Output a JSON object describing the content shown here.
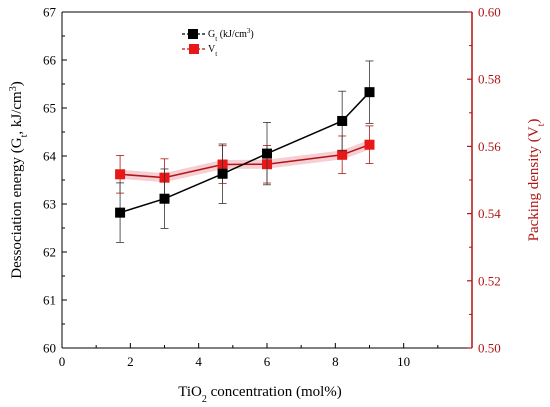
{
  "chart_data": {
    "type": "line",
    "x_axis": {
      "label_main": "TiO",
      "label_sub": "2",
      "label_rest": " concentration (mol%)",
      "range": [
        0,
        12
      ],
      "ticks": [
        0,
        2,
        4,
        6,
        8,
        10
      ]
    },
    "y_left": {
      "label_main": "Dessociation energy (G",
      "label_sub": "t",
      "label_mid": ", kJ/cm",
      "label_sup": "3",
      "label_end": ")",
      "range": [
        60,
        67
      ],
      "ticks": [
        60,
        61,
        62,
        63,
        64,
        65,
        66,
        67
      ]
    },
    "y_right": {
      "label_main": "Packing density (V",
      "label_sub": "t",
      "label_end": ")",
      "range": [
        0.5,
        0.6
      ],
      "ticks": [
        "0.50",
        "0.52",
        "0.54",
        "0.56",
        "0.58",
        "0.60"
      ],
      "tick_values": [
        0.5,
        0.52,
        0.54,
        0.56,
        0.58,
        0.6
      ],
      "color": "#b01515"
    },
    "series": [
      {
        "name_main": "G",
        "name_sub": "t",
        "name_rest": " (kJ/cm",
        "name_sup": "3",
        "name_end": ")",
        "axis": "left",
        "color": "#000000",
        "x": [
          1.7,
          3.0,
          4.7,
          6.0,
          8.2,
          9.0
        ],
        "y": [
          62.82,
          63.11,
          63.63,
          64.05,
          64.73,
          65.33
        ],
        "err": [
          0.62,
          0.62,
          0.62,
          0.65,
          0.62,
          0.65
        ]
      },
      {
        "name_main": "V",
        "name_sub": "t",
        "axis": "right",
        "color": "#b01515",
        "x": [
          1.7,
          3.0,
          4.7,
          6.0,
          8.2,
          9.0
        ],
        "y": [
          0.5517,
          0.5507,
          0.5546,
          0.5547,
          0.5575,
          0.5605
        ],
        "err": [
          0.0056,
          0.0056,
          0.0056,
          0.0056,
          0.0056,
          0.0056
        ]
      }
    ],
    "grid": false,
    "legend_position": "top-left"
  }
}
